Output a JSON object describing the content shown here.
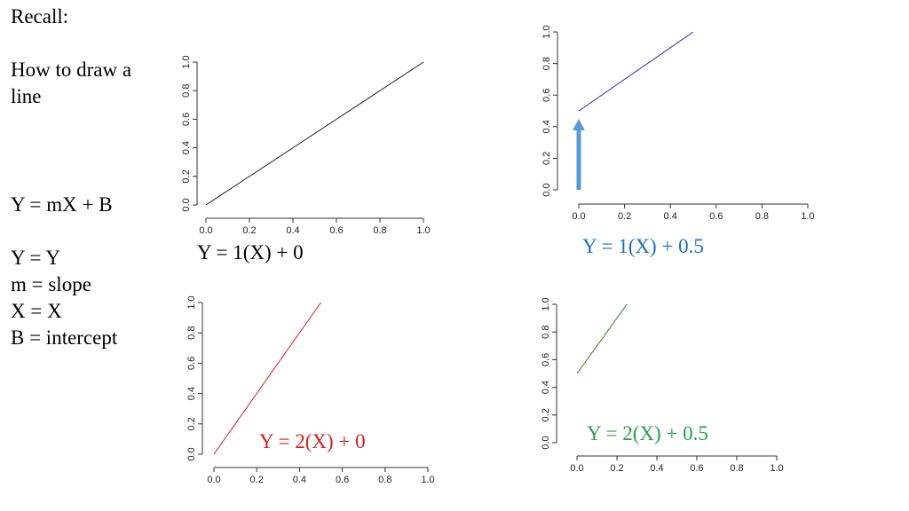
{
  "notes": {
    "title": "Recall:",
    "subtitle_line1": "How to draw a",
    "subtitle_line2": "line",
    "formula": "Y = mX + B",
    "def_y": "Y = Y",
    "def_m": "m = slope",
    "def_x": "X = X",
    "def_b": "B = intercept"
  },
  "colors": {
    "black_line": "#1a1a1a",
    "blue_line": "#2a2ab8",
    "red_line": "#d42020",
    "green_line": "#2e7d2e",
    "blue_text": "#1f6fb5",
    "red_text": "#d42020",
    "green_text": "#2aa04a",
    "arrow": "#5b9bd5"
  },
  "chart_data": [
    {
      "id": "plot1",
      "type": "line",
      "title": "",
      "xlabel": "",
      "ylabel": "",
      "xlim": [
        0.0,
        1.0
      ],
      "ylim": [
        0.0,
        1.0
      ],
      "xticks": [
        "0.0",
        "0.2",
        "0.4",
        "0.6",
        "0.8",
        "1.0"
      ],
      "yticks": [
        "0.0",
        "0.2",
        "0.4",
        "0.6",
        "0.8",
        "1.0"
      ],
      "series": [
        {
          "x": [
            0.0,
            1.0
          ],
          "y": [
            0.0,
            1.0
          ],
          "color": "#1a1a1a"
        }
      ],
      "equation": "Y = 1(X) + 0",
      "equation_color": "#000000"
    },
    {
      "id": "plot2",
      "type": "line",
      "title": "",
      "xlabel": "",
      "ylabel": "",
      "xlim": [
        0.0,
        1.0
      ],
      "ylim": [
        0.0,
        1.0
      ],
      "xticks": [
        "0.0",
        "0.2",
        "0.4",
        "0.6",
        "0.8",
        "1.0"
      ],
      "yticks": [
        "0.0",
        "0.2",
        "0.4",
        "0.6",
        "0.8",
        "1.0"
      ],
      "series": [
        {
          "x": [
            0.0,
            0.5
          ],
          "y": [
            0.5,
            1.0
          ],
          "color": "#2a2ab8"
        }
      ],
      "annotation": {
        "type": "arrow",
        "x": 0.0,
        "from": 0.0,
        "to": 0.45,
        "color": "#5b9bd5"
      },
      "equation": "Y = 1(X) + 0.5",
      "equation_color": "#1f6fb5"
    },
    {
      "id": "plot3",
      "type": "line",
      "title": "",
      "xlabel": "",
      "ylabel": "",
      "xlim": [
        0.0,
        1.0
      ],
      "ylim": [
        0.0,
        1.0
      ],
      "xticks": [
        "0.0",
        "0.2",
        "0.4",
        "0.6",
        "0.8",
        "1.0"
      ],
      "yticks": [
        "0.0",
        "0.2",
        "0.4",
        "0.6",
        "0.8",
        "1.0"
      ],
      "series": [
        {
          "x": [
            0.0,
            0.5
          ],
          "y": [
            0.0,
            1.0
          ],
          "color": "#d42020"
        }
      ],
      "equation": "Y = 2(X) + 0",
      "equation_color": "#d42020"
    },
    {
      "id": "plot4",
      "type": "line",
      "title": "",
      "xlabel": "",
      "ylabel": "",
      "xlim": [
        0.0,
        1.0
      ],
      "ylim": [
        0.0,
        1.0
      ],
      "xticks": [
        "0.0",
        "0.2",
        "0.4",
        "0.6",
        "0.8",
        "1.0"
      ],
      "yticks": [
        "0.0",
        "0.2",
        "0.4",
        "0.6",
        "0.8",
        "1.0"
      ],
      "series": [
        {
          "x": [
            0.0,
            0.25
          ],
          "y": [
            0.5,
            1.0
          ],
          "color": "#2e7d2e"
        }
      ],
      "equation": "Y = 2(X) + 0.5",
      "equation_color": "#2aa04a"
    }
  ]
}
